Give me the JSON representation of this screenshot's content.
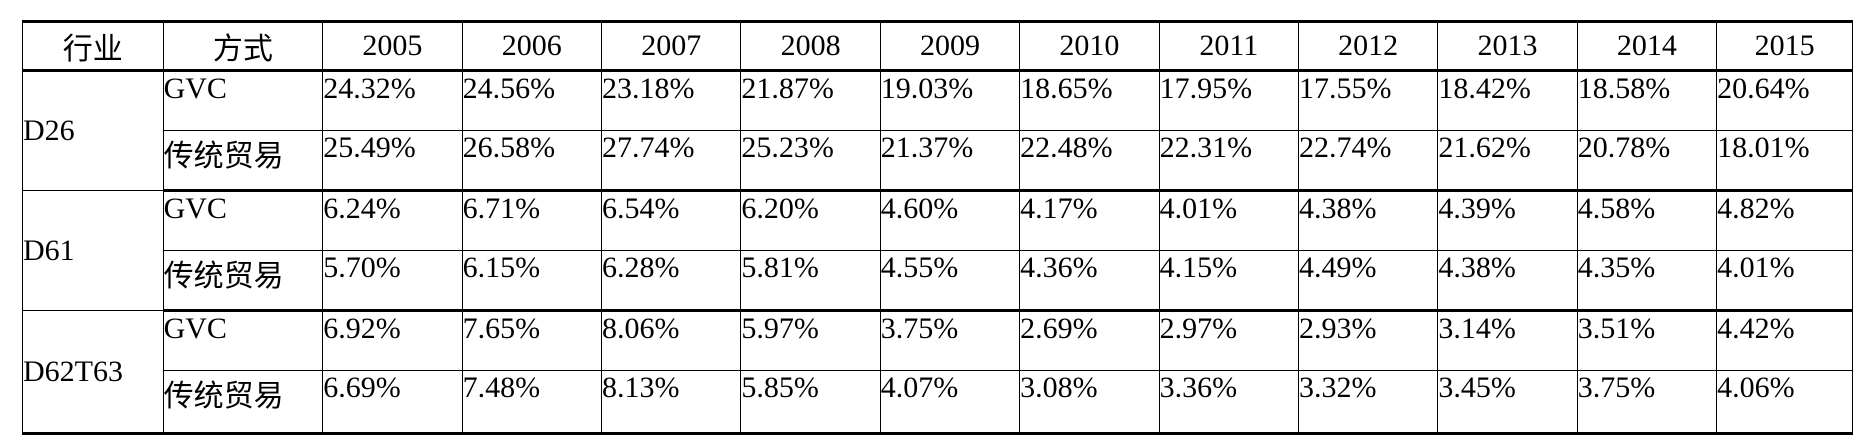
{
  "table": {
    "headers": [
      "行业",
      "方式",
      "2005",
      "2006",
      "2007",
      "2008",
      "2009",
      "2010",
      "2011",
      "2012",
      "2013",
      "2014",
      "2015"
    ],
    "groups": [
      {
        "industry": "D26",
        "rows": [
          {
            "method": "GVC",
            "values": [
              "24.32%",
              "24.56%",
              "23.18%",
              "21.87%",
              "19.03%",
              "18.65%",
              "17.95%",
              "17.55%",
              "18.42%",
              "18.58%",
              "20.64%"
            ]
          },
          {
            "method": "传统贸易",
            "values": [
              "25.49%",
              "26.58%",
              "27.74%",
              "25.23%",
              "21.37%",
              "22.48%",
              "22.31%",
              "22.74%",
              "21.62%",
              "20.78%",
              "18.01%"
            ]
          }
        ]
      },
      {
        "industry": "D61",
        "rows": [
          {
            "method": "GVC",
            "values": [
              "6.24%",
              "6.71%",
              "6.54%",
              "6.20%",
              "4.60%",
              "4.17%",
              "4.01%",
              "4.38%",
              "4.39%",
              "4.58%",
              "4.82%"
            ]
          },
          {
            "method": "传统贸易",
            "values": [
              "5.70%",
              "6.15%",
              "6.28%",
              "5.81%",
              "4.55%",
              "4.36%",
              "4.15%",
              "4.49%",
              "4.38%",
              "4.35%",
              "4.01%"
            ]
          }
        ]
      },
      {
        "industry": "D62T63",
        "rows": [
          {
            "method": "GVC",
            "values": [
              "6.92%",
              "7.65%",
              "8.06%",
              "5.97%",
              "3.75%",
              "2.69%",
              "2.97%",
              "2.93%",
              "3.14%",
              "3.51%",
              "4.42%"
            ]
          },
          {
            "method": "传统贸易",
            "values": [
              "6.69%",
              "7.48%",
              "8.13%",
              "5.85%",
              "4.07%",
              "3.08%",
              "3.36%",
              "3.32%",
              "3.45%",
              "3.75%",
              "4.06%"
            ]
          }
        ]
      }
    ]
  }
}
